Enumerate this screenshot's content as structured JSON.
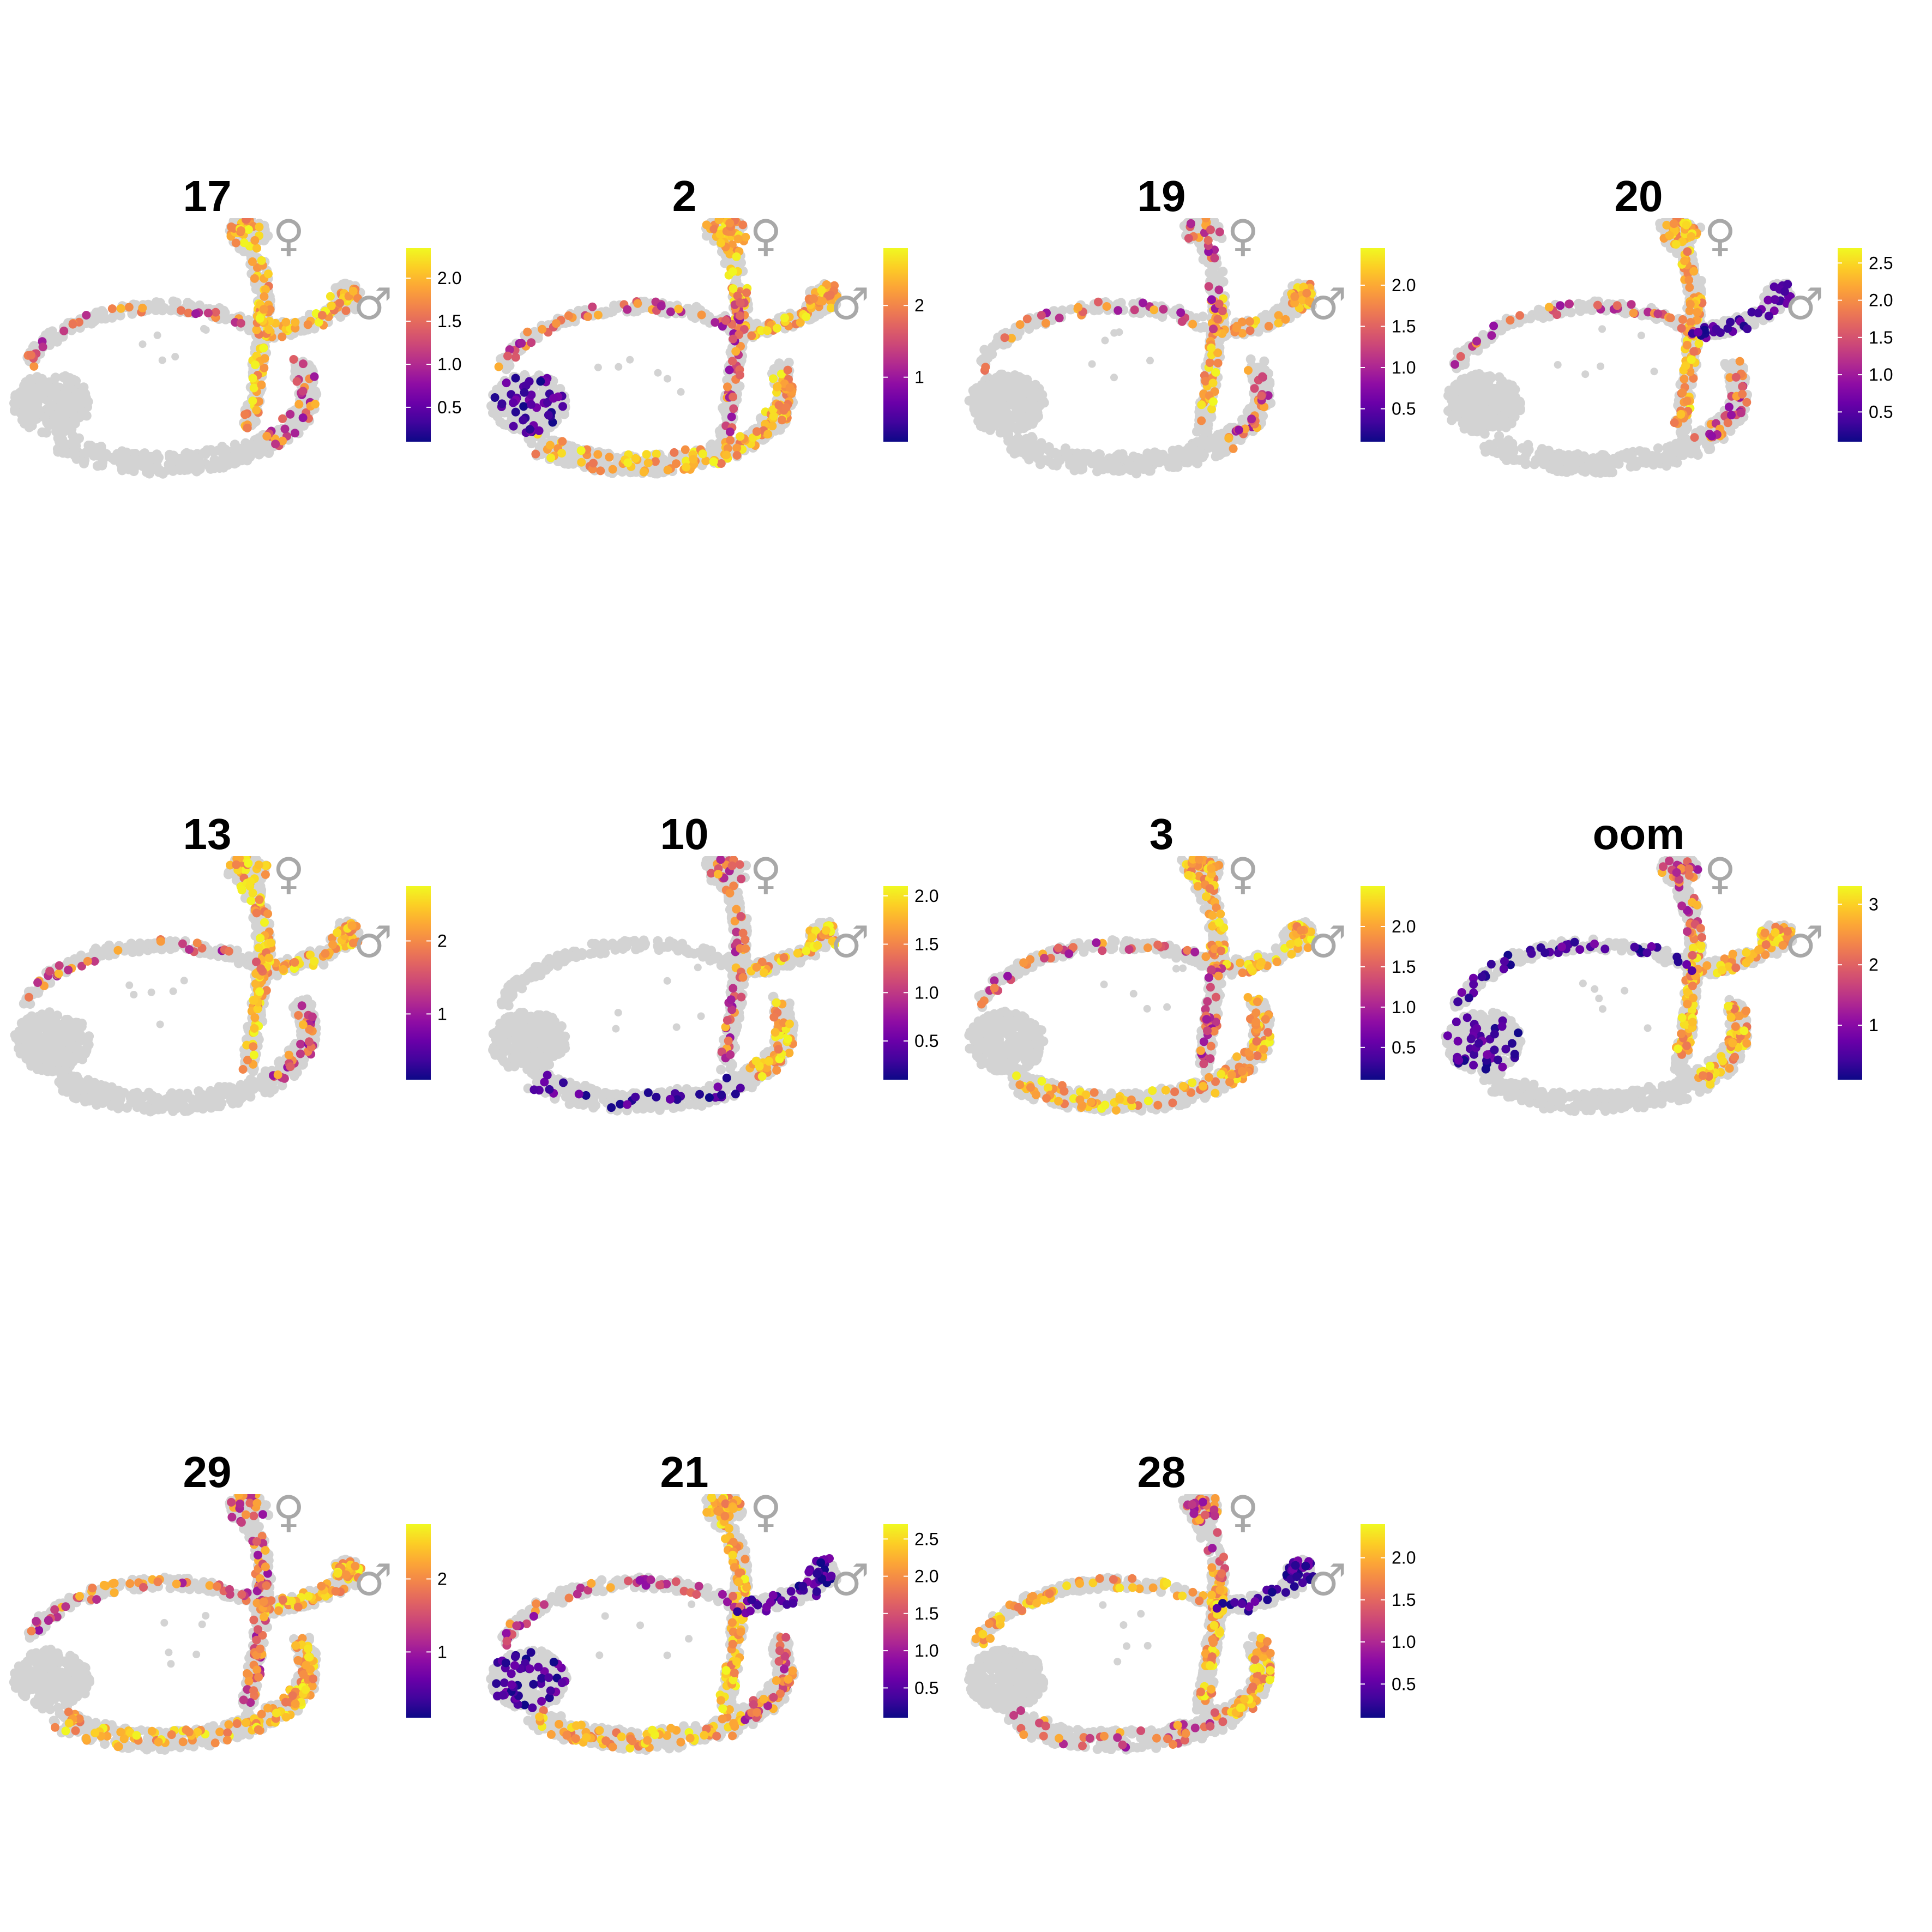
{
  "chart_data": [
    {
      "type": "scatter",
      "title": "17",
      "colorbar": {
        "range": [
          0.1,
          2.35
        ],
        "ticks": [
          0.5,
          1.0,
          1.5,
          2.0
        ],
        "tick_labels": [
          "0.5",
          "1.0",
          "1.5",
          "2.0"
        ]
      },
      "seed": 17,
      "high_regions": [
        "female_branch",
        "male_branch",
        "stem"
      ],
      "mid_regions": [
        "top_arc",
        "right_side"
      ],
      "density": 0.55
    },
    {
      "type": "scatter",
      "title": "2",
      "colorbar": {
        "range": [
          0.1,
          2.8
        ],
        "ticks": [
          1,
          2
        ],
        "tick_labels": [
          "1",
          "2"
        ]
      },
      "seed": 2,
      "high_regions": [
        "female_branch",
        "male_branch",
        "right_side",
        "bottom"
      ],
      "mid_regions": [
        "stem",
        "top_arc"
      ],
      "low_regions": [
        "left_blob"
      ],
      "density": 0.75
    },
    {
      "type": "scatter",
      "title": "19",
      "colorbar": {
        "range": [
          0.1,
          2.45
        ],
        "ticks": [
          0.5,
          1.0,
          1.5,
          2.0
        ],
        "tick_labels": [
          "0.5",
          "1.0",
          "1.5",
          "2.0"
        ]
      },
      "seed": 19,
      "high_regions": [
        "male_branch",
        "stem"
      ],
      "mid_regions": [
        "female_branch",
        "top_arc",
        "right_side"
      ],
      "density": 0.5
    },
    {
      "type": "scatter",
      "title": "20",
      "colorbar": {
        "range": [
          0.1,
          2.7
        ],
        "ticks": [
          0.5,
          1.0,
          1.5,
          2.0,
          2.5
        ],
        "tick_labels": [
          "0.5",
          "1.0",
          "1.5",
          "2.0",
          "2.5"
        ]
      },
      "seed": 20,
      "high_regions": [
        "female_branch",
        "stem"
      ],
      "mid_regions": [
        "right_side",
        "top_arc"
      ],
      "low_regions": [
        "male_branch"
      ],
      "density": 0.6
    },
    {
      "type": "scatter",
      "title": "13",
      "colorbar": {
        "range": [
          0.1,
          2.75
        ],
        "ticks": [
          1,
          2
        ],
        "tick_labels": [
          "1",
          "2"
        ]
      },
      "seed": 13,
      "high_regions": [
        "female_branch",
        "male_branch",
        "stem"
      ],
      "mid_regions": [
        "right_side",
        "top_arc"
      ],
      "density": 0.55
    },
    {
      "type": "scatter",
      "title": "10",
      "colorbar": {
        "range": [
          0.1,
          2.1
        ],
        "ticks": [
          0.5,
          1.0,
          1.5,
          2.0
        ],
        "tick_labels": [
          "0.5",
          "1.0",
          "1.5",
          "2.0"
        ]
      },
      "seed": 10,
      "high_regions": [
        "male_branch",
        "right_side"
      ],
      "mid_regions": [
        "female_branch",
        "stem"
      ],
      "low_regions": [
        "bottom"
      ],
      "density": 0.5
    },
    {
      "type": "scatter",
      "title": "3",
      "colorbar": {
        "range": [
          0.1,
          2.5
        ],
        "ticks": [
          0.5,
          1.0,
          1.5,
          2.0
        ],
        "tick_labels": [
          "0.5",
          "1.0",
          "1.5",
          "2.0"
        ]
      },
      "seed": 3,
      "high_regions": [
        "female_branch",
        "male_branch",
        "right_side",
        "bottom"
      ],
      "mid_regions": [
        "top_arc",
        "stem"
      ],
      "density": 0.65
    },
    {
      "type": "scatter",
      "title": "oom",
      "colorbar": {
        "range": [
          0.1,
          3.3
        ],
        "ticks": [
          1,
          2,
          3
        ],
        "tick_labels": [
          "1",
          "2",
          "3"
        ]
      },
      "seed": 31,
      "high_regions": [
        "male_branch",
        "right_side",
        "stem"
      ],
      "mid_regions": [
        "female_branch"
      ],
      "low_regions": [
        "top_arc",
        "left_blob"
      ],
      "density": 0.7
    },
    {
      "type": "scatter",
      "title": "29",
      "colorbar": {
        "range": [
          0.1,
          2.75
        ],
        "ticks": [
          1,
          2
        ],
        "tick_labels": [
          "1",
          "2"
        ]
      },
      "seed": 29,
      "high_regions": [
        "male_branch",
        "bottom",
        "right_side"
      ],
      "mid_regions": [
        "female_branch",
        "top_arc",
        "stem"
      ],
      "density": 0.8
    },
    {
      "type": "scatter",
      "title": "21",
      "colorbar": {
        "range": [
          0.1,
          2.7
        ],
        "ticks": [
          0.5,
          1.0,
          1.5,
          2.0,
          2.5
        ],
        "tick_labels": [
          "0.5",
          "1.0",
          "1.5",
          "2.0",
          "2.5"
        ]
      },
      "seed": 21,
      "high_regions": [
        "female_branch",
        "bottom",
        "stem"
      ],
      "mid_regions": [
        "top_arc",
        "right_side"
      ],
      "low_regions": [
        "left_blob",
        "male_branch"
      ],
      "density": 0.8
    },
    {
      "type": "scatter",
      "title": "28",
      "colorbar": {
        "range": [
          0.1,
          2.4
        ],
        "ticks": [
          0.5,
          1.0,
          1.5,
          2.0
        ],
        "tick_labels": [
          "0.5",
          "1.0",
          "1.5",
          "2.0"
        ]
      },
      "seed": 28,
      "high_regions": [
        "top_arc",
        "stem",
        "right_side"
      ],
      "mid_regions": [
        "female_branch",
        "bottom"
      ],
      "low_regions": [
        "male_branch"
      ],
      "density": 0.7
    }
  ],
  "symbols": {
    "female": "♀",
    "male": "♂"
  }
}
